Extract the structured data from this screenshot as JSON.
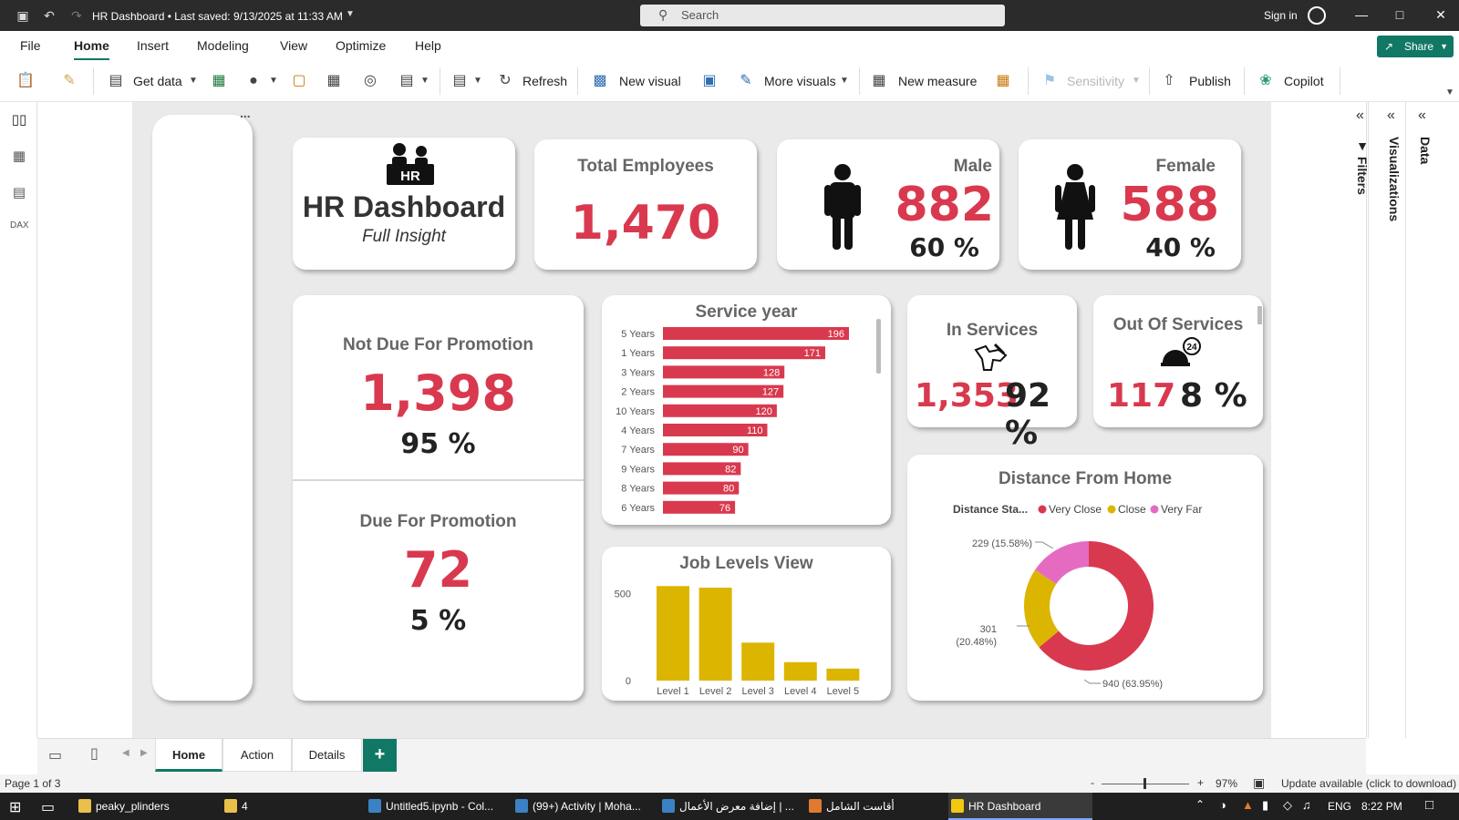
{
  "window": {
    "title": "HR Dashboard • Last saved: 9/13/2025 at 11:33 AM",
    "search_placeholder": "Search",
    "sign_in": "Sign in"
  },
  "menu": {
    "items": [
      "File",
      "Home",
      "Insert",
      "Modeling",
      "View",
      "Optimize",
      "Help"
    ],
    "active": "Home",
    "share_label": "Share"
  },
  "toolbar": {
    "get_data": "Get data",
    "refresh": "Refresh",
    "new_visual": "New visual",
    "more_visuals": "More visuals",
    "new_measure": "New measure",
    "sensitivity": "Sensitivity",
    "publish": "Publish",
    "copilot": "Copilot"
  },
  "right_pane": {
    "filters": "Filters",
    "visualizations": "Visualizations",
    "data": "Data"
  },
  "dashboard": {
    "header": {
      "title": "HR Dashboard",
      "subtitle": "Full Insight",
      "logo_text": "HR"
    },
    "total_employees": {
      "label": "Total Employees",
      "value": "1,470"
    },
    "male": {
      "label": "Male",
      "value": "882",
      "pct": "60 %"
    },
    "female": {
      "label": "Female",
      "value": "588",
      "pct": "40 %"
    },
    "not_due": {
      "label": "Not Due For Promotion",
      "value": "1,398",
      "pct": "95 %"
    },
    "due": {
      "label": "Due For Promotion",
      "value": "72",
      "pct": "5 %"
    },
    "in_services": {
      "label": "In Services",
      "value": "1,353",
      "pct": "92 %"
    },
    "out_services": {
      "label": "Out Of Services",
      "value": "117",
      "pct": "8 %",
      "badge": "24"
    },
    "more_options": "..."
  },
  "chart_data": [
    {
      "type": "bar",
      "orientation": "horizontal",
      "title": "Service year",
      "categories": [
        "5 Years",
        "1 Years",
        "3 Years",
        "2 Years",
        "10 Years",
        "4 Years",
        "7 Years",
        "9 Years",
        "8 Years",
        "6 Years"
      ],
      "values": [
        196,
        171,
        128,
        127,
        120,
        110,
        90,
        82,
        80,
        76
      ],
      "color": "#d9394e"
    },
    {
      "type": "bar",
      "title": "Job Levels View",
      "categories": [
        "Level 1",
        "Level 2",
        "Level 3",
        "Level 4",
        "Level 5"
      ],
      "values": [
        543,
        534,
        218,
        106,
        69
      ],
      "yticks": [
        "0",
        "500"
      ],
      "ylim": [
        0,
        560
      ],
      "color": "#dcb500"
    },
    {
      "type": "pie",
      "variant": "donut",
      "title": "Distance From Home",
      "legend_title": "Distance Sta...",
      "legend_position": "top",
      "slices": [
        {
          "label": "Very Close",
          "value": 940,
          "display": "940 (63.95%)",
          "color": "#d9394e"
        },
        {
          "label": "Close",
          "value": 301,
          "display_line1": "301",
          "display_line2": "(20.48%)",
          "color": "#dcb500"
        },
        {
          "label": "Very Far",
          "value": 229,
          "display": "229 (15.58%)",
          "color": "#e56bc1"
        }
      ]
    }
  ],
  "page_tabs": [
    "Home",
    "Action",
    "Details"
  ],
  "page_tab_add": "+",
  "status": {
    "page": "Page 1 of 3",
    "zoom_minus": "-",
    "zoom_plus": "+",
    "zoom": "97%",
    "update": "Update available (click to download)"
  },
  "taskbar": {
    "items": [
      {
        "label": "peaky_plinders",
        "color": "#e8c04a"
      },
      {
        "label": "4",
        "color": "#e8c04a"
      },
      {
        "label": "Untitled5.ipynb - Col...",
        "color": "#3b82c4"
      },
      {
        "label": "(99+) Activity | Moha...",
        "color": "#3b82c4"
      },
      {
        "label": "إضافة معرض الأعمال | ...",
        "color": "#3b82c4"
      },
      {
        "label": "أقاست الشامل",
        "color": "#e07a2f"
      },
      {
        "label": "HR Dashboard",
        "color": "#f2c811"
      }
    ],
    "lang": "ENG",
    "time": "8:22 PM"
  }
}
